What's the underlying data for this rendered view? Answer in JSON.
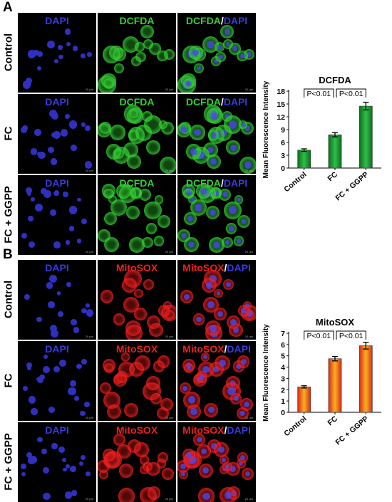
{
  "panels": [
    {
      "letter": "A",
      "rows": [
        "Control",
        "FC",
        "FC + GGPP"
      ],
      "columns": [
        {
          "parts": [
            "DAPI"
          ],
          "colors": [
            "blue"
          ]
        },
        {
          "parts": [
            "DCFDA"
          ],
          "colors": [
            "green"
          ]
        },
        {
          "parts": [
            "DCFDA",
            "DAPI"
          ],
          "colors": [
            "green",
            "blue"
          ]
        }
      ],
      "scale_text": "20 μm"
    },
    {
      "letter": "B",
      "rows": [
        "Control",
        "FC",
        "FC + GGPP"
      ],
      "columns": [
        {
          "parts": [
            "DAPI"
          ],
          "colors": [
            "blue"
          ]
        },
        {
          "parts": [
            "MitoSOX"
          ],
          "colors": [
            "red"
          ]
        },
        {
          "parts": [
            "MitoSOX",
            "DAPI"
          ],
          "colors": [
            "red",
            "blue"
          ]
        }
      ],
      "scale_text": "20 μm"
    }
  ],
  "colors": {
    "blue": "#3a3ae0",
    "green": "#33d133",
    "red": "#f01e1e",
    "bar_green_dark": "#0e6b1c",
    "bar_green_light": "#2fbf4a",
    "bar_red": "#d9261c",
    "bar_orange": "#f7b21e"
  },
  "chart_data": [
    {
      "type": "bar",
      "title": "DCFDA",
      "ylabel": "Mean Fluorescence Intensity",
      "categories": [
        "Control",
        "FC",
        "FC + GGPP"
      ],
      "values": [
        4.2,
        7.8,
        14.5
      ],
      "errors": [
        0.3,
        0.5,
        0.9
      ],
      "ylim": [
        0,
        18
      ],
      "yticks": [
        0,
        3,
        6,
        9,
        12,
        15,
        18
      ],
      "annotations": [
        "P<0.01",
        "P<0.01"
      ],
      "fill": "green"
    },
    {
      "type": "bar",
      "title": "MitoSOX",
      "ylabel": "Mean Fluorescence Intensity",
      "categories": [
        "Control",
        "FC",
        "FC + GGPP"
      ],
      "values": [
        2.25,
        4.75,
        5.9
      ],
      "errors": [
        0.1,
        0.2,
        0.3
      ],
      "ylim": [
        0,
        7
      ],
      "yticks": [
        0,
        1,
        2,
        3,
        4,
        5,
        6,
        7
      ],
      "annotations": [
        "P<0.01",
        "P<0.01"
      ],
      "fill": "red"
    }
  ]
}
